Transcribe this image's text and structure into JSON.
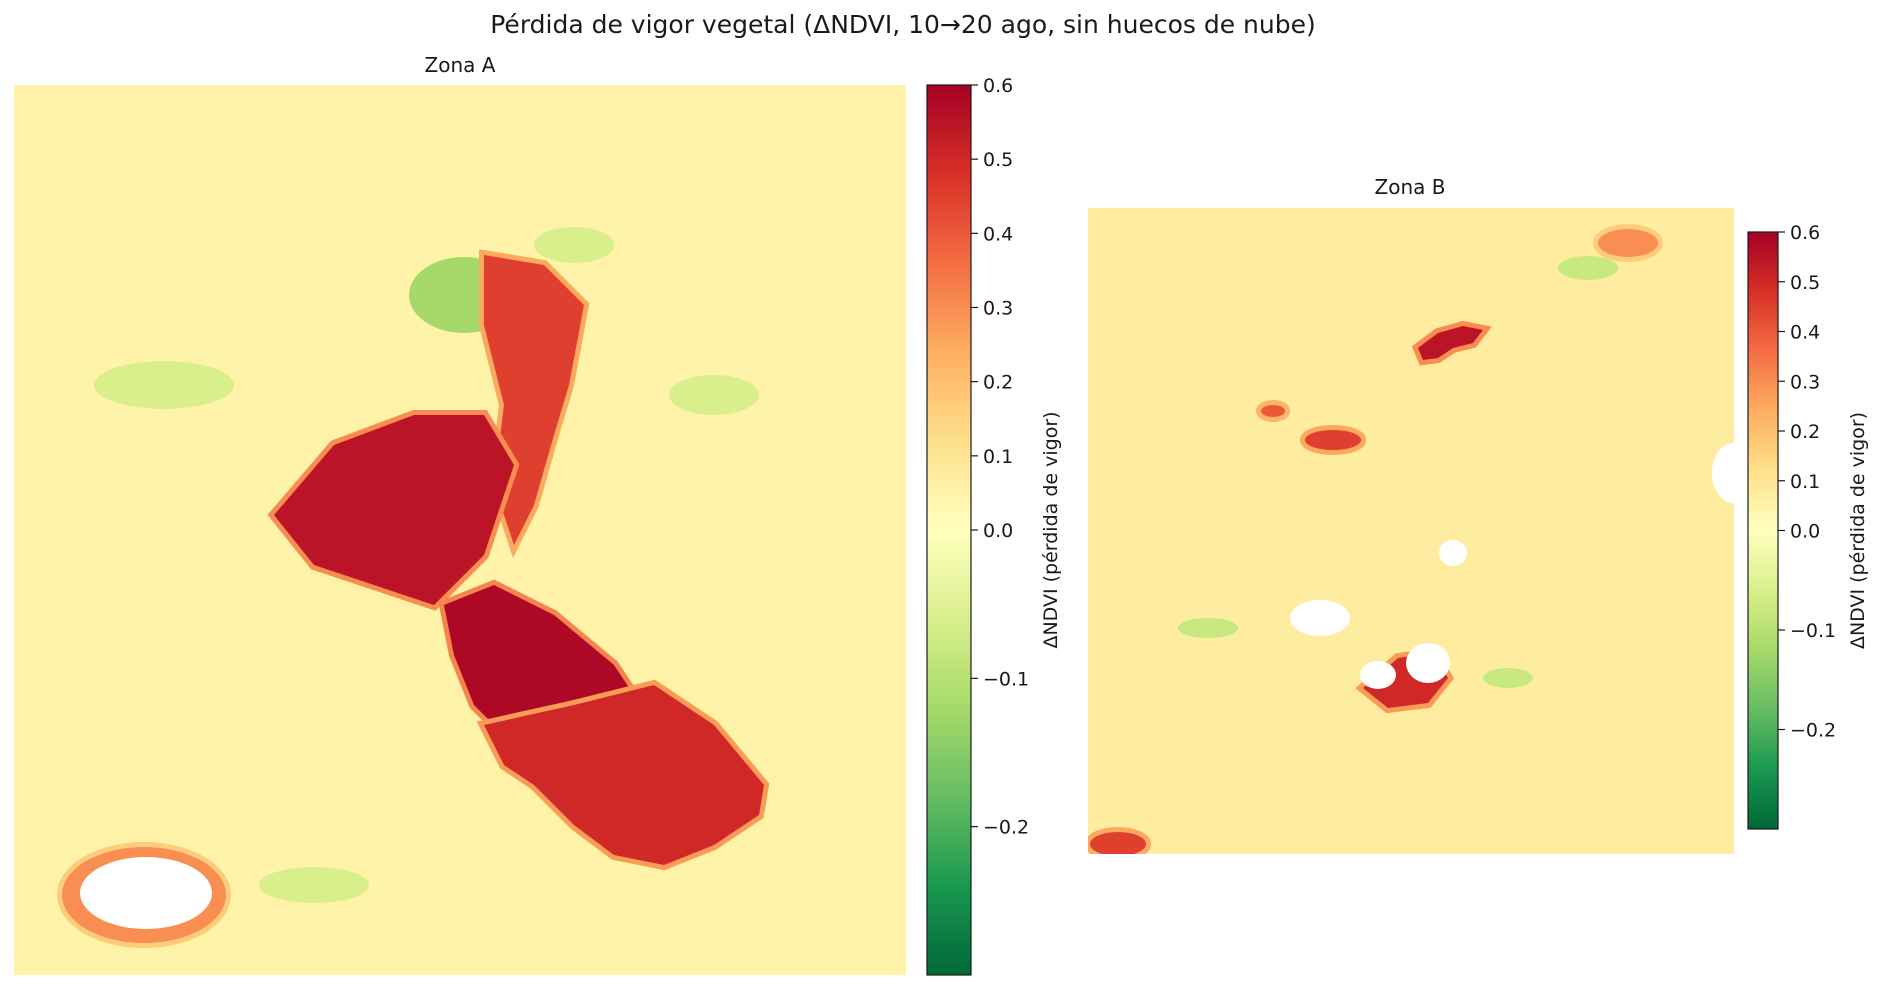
{
  "chart_data": {
    "suptitle": "Pérdida de vigor vegetal (ΔNDVI, 10→20 ago, sin huecos de nube)",
    "panels": [
      {
        "type": "heatmap",
        "title": "Zona A",
        "colorbar": {
          "label": "ΔNDVI (pérdida de vigor)",
          "colormap": "RdYlGn_r",
          "vmin": -0.3,
          "vcenter": 0.0,
          "vmax": 0.6,
          "ticks": [
            {
              "value": 0.6,
              "label": "0.6"
            },
            {
              "value": 0.5,
              "label": "0.5"
            },
            {
              "value": 0.4,
              "label": "0.4"
            },
            {
              "value": 0.3,
              "label": "0.3"
            },
            {
              "value": 0.2,
              "label": "0.2"
            },
            {
              "value": 0.1,
              "label": "0.1"
            },
            {
              "value": 0.0,
              "label": "0.0"
            },
            {
              "value": -0.1,
              "label": "−0.1"
            },
            {
              "value": -0.2,
              "label": "−0.2"
            }
          ]
        },
        "background_value": 0.05,
        "loss_regions": [
          {
            "name": "northern-arm",
            "peak_value": 0.45
          },
          {
            "name": "western-lobe",
            "peak_value": 0.55
          },
          {
            "name": "central-scar",
            "peak_value": 0.58
          },
          {
            "name": "southern-fingers",
            "peak_value": 0.5
          },
          {
            "name": "cloud-gap-rim",
            "peak_value": 0.3
          }
        ],
        "gain_regions": [
          {
            "name": "north-green-patch",
            "value": -0.12
          },
          {
            "name": "scattered-green-fields",
            "value": -0.06
          }
        ],
        "nodata_areas": [
          {
            "name": "cloud-gap-southwest",
            "shown_as": "white"
          }
        ]
      },
      {
        "type": "heatmap",
        "title": "Zona B",
        "colorbar": {
          "label": "ΔNDVI (pérdida de vigor)",
          "colormap": "RdYlGn_r",
          "vmin": -0.3,
          "vcenter": 0.0,
          "vmax": 0.6,
          "ticks": [
            {
              "value": 0.6,
              "label": "0.6"
            },
            {
              "value": 0.5,
              "label": "0.5"
            },
            {
              "value": 0.4,
              "label": "0.4"
            },
            {
              "value": 0.3,
              "label": "0.3"
            },
            {
              "value": 0.2,
              "label": "0.2"
            },
            {
              "value": 0.1,
              "label": "0.1"
            },
            {
              "value": 0.0,
              "label": "0.0"
            },
            {
              "value": -0.1,
              "label": "−0.1"
            },
            {
              "value": -0.2,
              "label": "−0.2"
            }
          ]
        },
        "background_value": 0.07,
        "loss_regions": [
          {
            "name": "north-ring",
            "peak_value": 0.55
          },
          {
            "name": "west-streak",
            "peak_value": 0.45
          },
          {
            "name": "small-west-spot",
            "peak_value": 0.4
          },
          {
            "name": "south-cluster",
            "peak_value": 0.5
          },
          {
            "name": "southwest-corner",
            "peak_value": 0.45
          },
          {
            "name": "northeast-patch",
            "peak_value": 0.3
          }
        ],
        "gain_regions": [
          {
            "name": "scattered-green-specks",
            "value": -0.08
          }
        ],
        "nodata_areas": [
          {
            "name": "cloud-gap-east-edge",
            "shown_as": "white"
          },
          {
            "name": "cloud-gap-center",
            "shown_as": "white"
          },
          {
            "name": "cloud-gap-southwest",
            "shown_as": "white"
          },
          {
            "name": "cloud-gap-south",
            "shown_as": "white"
          }
        ]
      }
    ]
  }
}
